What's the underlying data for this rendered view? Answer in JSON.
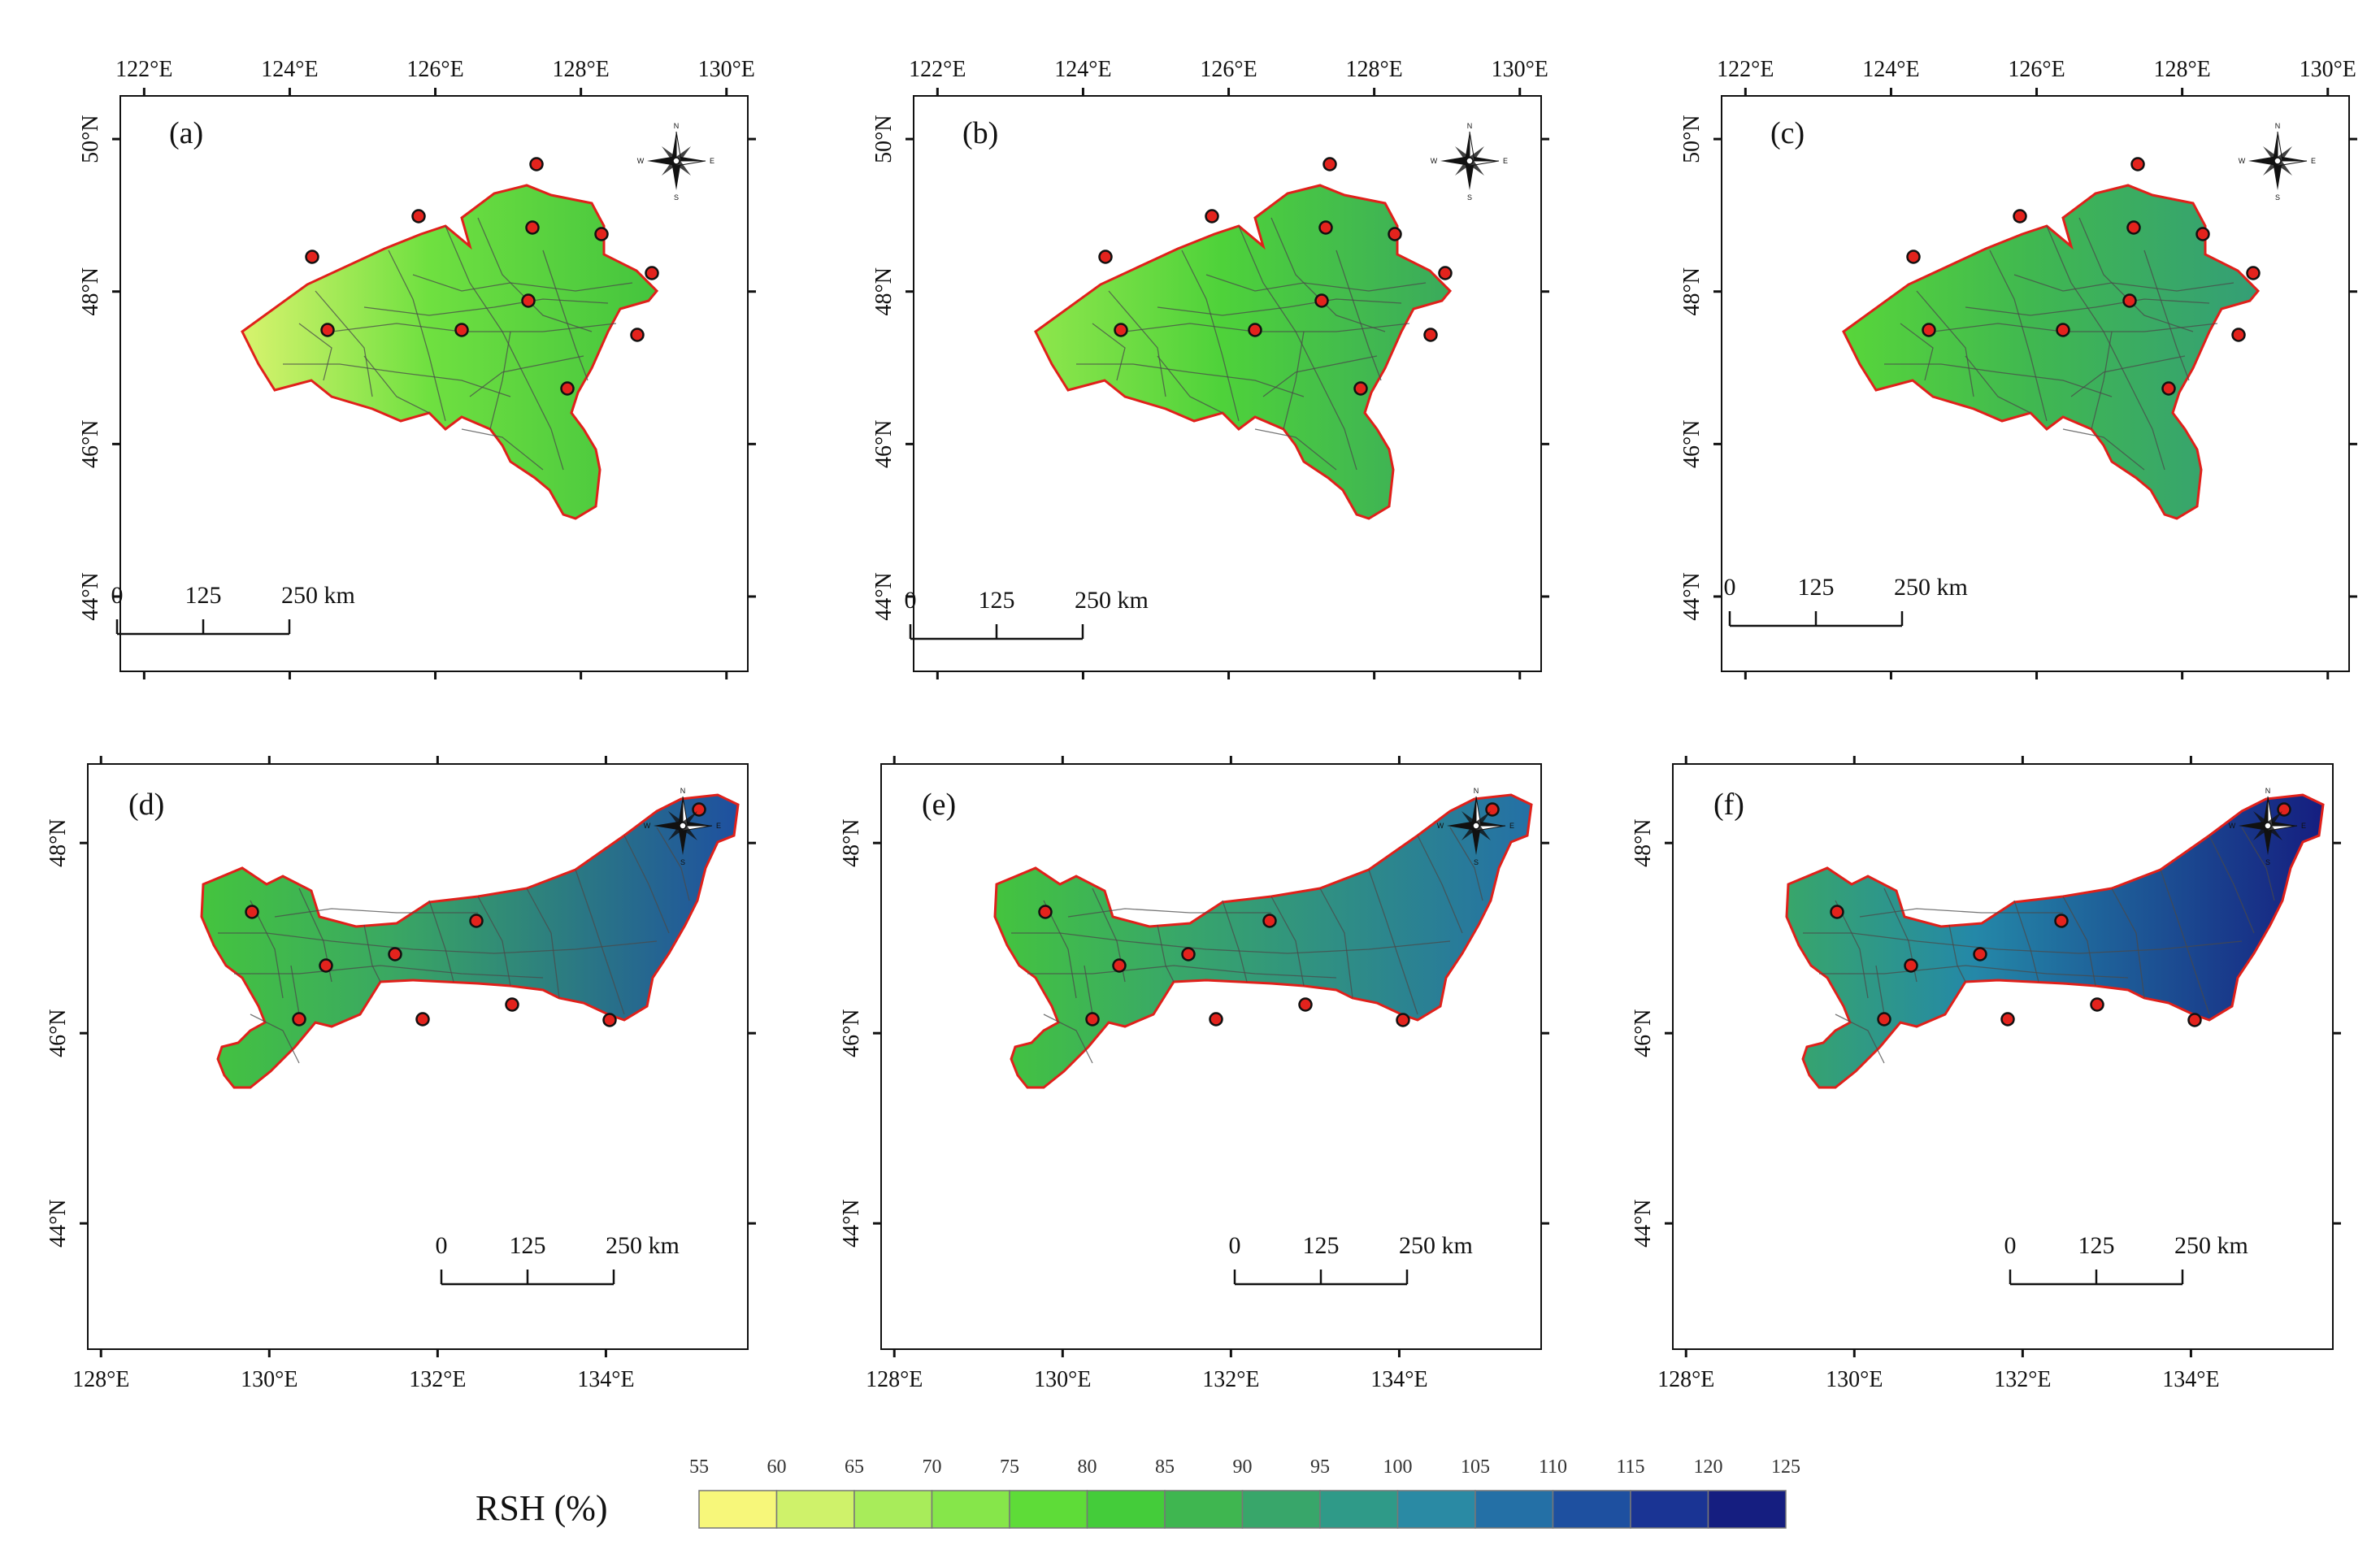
{
  "figure": {
    "legend": {
      "title": "RSH (%)",
      "ticks": [
        "55",
        "60",
        "65",
        "70",
        "75",
        "80",
        "85",
        "90",
        "95",
        "100",
        "105",
        "110",
        "115",
        "120",
        "125"
      ],
      "colors": [
        "#f7f77a",
        "#cff26a",
        "#a8ec5a",
        "#86e64a",
        "#5edc38",
        "#44cc3a",
        "#3fb650",
        "#38a66a",
        "#2f9a88",
        "#2a8aa4",
        "#2470a6",
        "#1e50a0",
        "#1a3494",
        "#151e80"
      ]
    },
    "compass": {
      "n": "N",
      "s": "S",
      "e": "E",
      "w": "W"
    },
    "panels": [
      {
        "label": "(a)",
        "lon_ticks": [
          "122°E",
          "124°E",
          "126°E",
          "128°E",
          "130°E"
        ],
        "lat_ticks": [
          "50°N",
          "48°N",
          "46°N",
          "44°N"
        ],
        "scale": {
          "zero": "0",
          "mid": "125",
          "end": "250 km"
        },
        "colors": {
          "west": "#d8f36e",
          "center": "#6fe040",
          "east": "#44c43e"
        }
      },
      {
        "label": "(b)",
        "lon_ticks": [
          "122°E",
          "124°E",
          "126°E",
          "128°E",
          "130°E"
        ],
        "lat_ticks": [
          "50°N",
          "48°N",
          "46°N",
          "44°N"
        ],
        "scale": {
          "zero": "0",
          "mid": "125",
          "end": "250 km"
        },
        "colors": {
          "west": "#8ee64c",
          "center": "#4ed23a",
          "east": "#3aaa5c"
        }
      },
      {
        "label": "(c)",
        "lon_ticks": [
          "122°E",
          "124°E",
          "126°E",
          "128°E",
          "130°E"
        ],
        "lat_ticks": [
          "50°N",
          "48°N",
          "46°N",
          "44°N"
        ],
        "scale": {
          "zero": "0",
          "mid": "125",
          "end": "250 km"
        },
        "colors": {
          "west": "#58d63a",
          "center": "#40b850",
          "east": "#349e76"
        }
      },
      {
        "label": "(d)",
        "lon_ticks": [
          "128°E",
          "130°E",
          "132°E",
          "134°E"
        ],
        "lat_ticks": [
          "48°N",
          "46°N",
          "44°N"
        ],
        "scale": {
          "zero": "0",
          "mid": "125",
          "end": "250 km"
        },
        "colors": {
          "west": "#44c43e",
          "center": "#3aa862",
          "east": "#1e50a0"
        }
      },
      {
        "label": "(e)",
        "lon_ticks": [
          "128°E",
          "130°E",
          "132°E",
          "134°E"
        ],
        "lat_ticks": [
          "48°N",
          "46°N",
          "44°N"
        ],
        "scale": {
          "zero": "0",
          "mid": "125",
          "end": "250 km"
        },
        "colors": {
          "west": "#44c43e",
          "center": "#38a66a",
          "east": "#2470a6"
        }
      },
      {
        "label": "(f)",
        "lon_ticks": [
          "128°E",
          "130°E",
          "132°E",
          "134°E"
        ],
        "lat_ticks": [
          "48°N",
          "46°N",
          "44°N"
        ],
        "scale": {
          "zero": "0",
          "mid": "125",
          "end": "250 km"
        },
        "colors": {
          "west": "#38a66a",
          "center": "#2488a8",
          "east": "#151e80"
        }
      }
    ]
  }
}
